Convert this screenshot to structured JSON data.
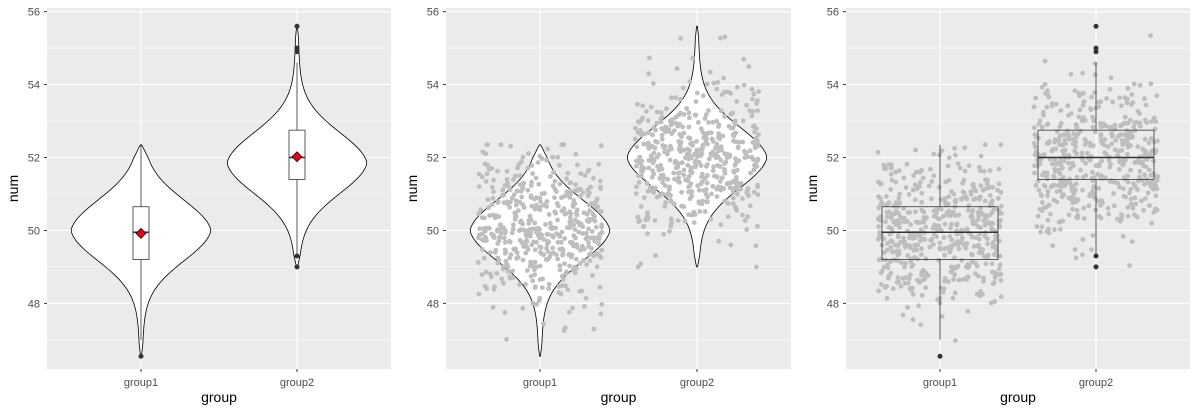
{
  "chart_data": [
    {
      "type": "violin",
      "overlay": "boxplot + mean point",
      "xlabel": "group",
      "ylabel": "num",
      "categories": [
        "group1",
        "group2"
      ],
      "ylim": [
        46.2,
        56.1
      ],
      "yticks": [
        48,
        50,
        52,
        54,
        56
      ],
      "grid": true,
      "background": "#ebebeb",
      "series": [
        {
          "category": "group1",
          "min": 46.55,
          "max": 52.35,
          "q1": 49.2,
          "median": 49.95,
          "q3": 50.65,
          "whisker_low": 47.0,
          "whisker_high": 52.35,
          "mean": 49.92,
          "outliers": [
            46.55
          ],
          "density_peak": 50.0
        },
        {
          "category": "group2",
          "min": 49.0,
          "max": 55.6,
          "q1": 51.4,
          "median": 52.0,
          "q3": 52.75,
          "whisker_low": 49.3,
          "whisker_high": 54.6,
          "mean": 52.02,
          "outliers": [
            49.0,
            49.3,
            54.9,
            55.0,
            55.6
          ],
          "density_peak": 51.85
        }
      ],
      "mean_color": "#e8000b",
      "violin_fill": "#ffffff"
    },
    {
      "type": "violin",
      "overlay": "jittered points",
      "xlabel": "group",
      "ylabel": "num",
      "categories": [
        "group1",
        "group2"
      ],
      "ylim": [
        46.2,
        56.1
      ],
      "yticks": [
        48,
        50,
        52,
        54,
        56
      ],
      "grid": true,
      "background": "#ebebeb",
      "point_color": "#bebebe",
      "series": [
        {
          "category": "group1",
          "min": 46.55,
          "max": 52.35,
          "center": 50.0,
          "sd": 1.0,
          "n": 500
        },
        {
          "category": "group2",
          "min": 49.0,
          "max": 55.6,
          "center": 52.0,
          "sd": 1.0,
          "n": 500
        }
      ]
    },
    {
      "type": "boxplot",
      "overlay": "jittered points",
      "xlabel": "group",
      "ylabel": "num",
      "categories": [
        "group1",
        "group2"
      ],
      "ylim": [
        46.2,
        56.1
      ],
      "yticks": [
        48,
        50,
        52,
        54,
        56
      ],
      "grid": true,
      "background": "#ebebeb",
      "point_color": "#bebebe",
      "series": [
        {
          "category": "group1",
          "q1": 49.2,
          "median": 49.95,
          "q3": 50.65,
          "whisker_low": 47.0,
          "whisker_high": 52.35,
          "outliers": [
            46.55
          ]
        },
        {
          "category": "group2",
          "q1": 51.4,
          "median": 52.0,
          "q3": 52.75,
          "whisker_low": 49.3,
          "whisker_high": 54.6,
          "outliers": [
            49.0,
            49.3,
            54.9,
            55.0,
            55.6
          ]
        }
      ]
    }
  ]
}
